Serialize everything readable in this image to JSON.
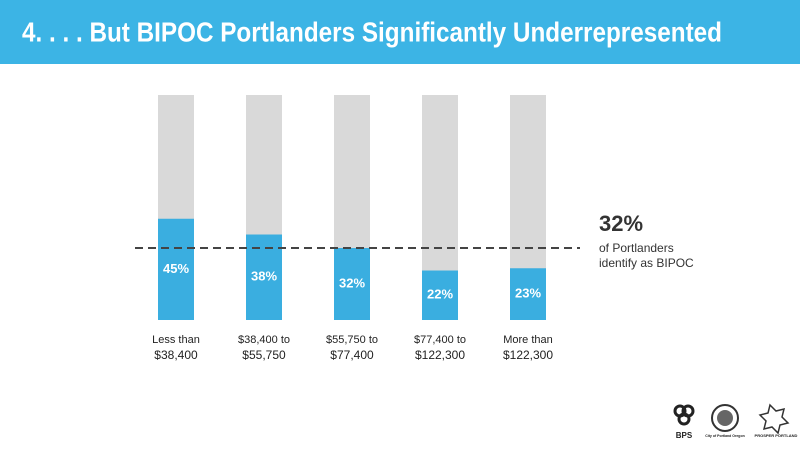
{
  "chart_data": {
    "type": "bar",
    "title": "4.   . . . But BIPOC Portlanders Significantly Underrepresented",
    "categories": [
      [
        "Less than",
        "$38,400"
      ],
      [
        "$38,400 to",
        "$55,750"
      ],
      [
        "$55,750 to",
        "$77,400"
      ],
      [
        "$77,400 to",
        "$122,300"
      ],
      [
        "More than",
        "$122,300"
      ]
    ],
    "values": [
      45,
      38,
      32,
      22,
      23
    ],
    "value_labels": [
      "45%",
      "38%",
      "32%",
      "22%",
      "23%"
    ],
    "color": "#3aaee0",
    "track_color": "#d9d9d9",
    "ylim": [
      0,
      100
    ],
    "reference": {
      "value": 32,
      "label": "32%",
      "text": [
        "of Portlanders",
        "identify as BIPOC"
      ]
    },
    "logos": [
      "BPS",
      "City of Portland Oregon",
      "PROSPER PORTLAND"
    ]
  }
}
